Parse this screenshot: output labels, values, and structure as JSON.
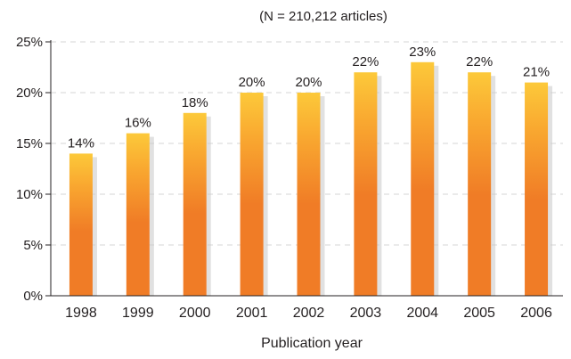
{
  "chart_data": {
    "type": "bar",
    "subtitle": "(N = 210,212 articles)",
    "xlabel": "Publication year",
    "ylabel": "",
    "categories": [
      "1998",
      "1999",
      "2000",
      "2001",
      "2002",
      "2003",
      "2004",
      "2005",
      "2006"
    ],
    "values": [
      14,
      16,
      18,
      20,
      20,
      22,
      23,
      22,
      21
    ],
    "data_labels": [
      "14%",
      "16%",
      "18%",
      "20%",
      "20%",
      "22%",
      "23%",
      "22%",
      "21%"
    ],
    "ylim": [
      0,
      25
    ],
    "y_ticks": [
      0,
      5,
      10,
      15,
      20,
      25
    ],
    "y_tick_labels": [
      "0%",
      "5%",
      "10%",
      "15%",
      "20%",
      "25%"
    ],
    "grid": "horizontal dashed",
    "legend": "none",
    "colors": {
      "bar_top": "#fcc93a",
      "bar_bottom": "#f07c26",
      "shadow": "#c8c8c8",
      "grid": "#d6d6d6",
      "axis": "#231f20"
    }
  }
}
